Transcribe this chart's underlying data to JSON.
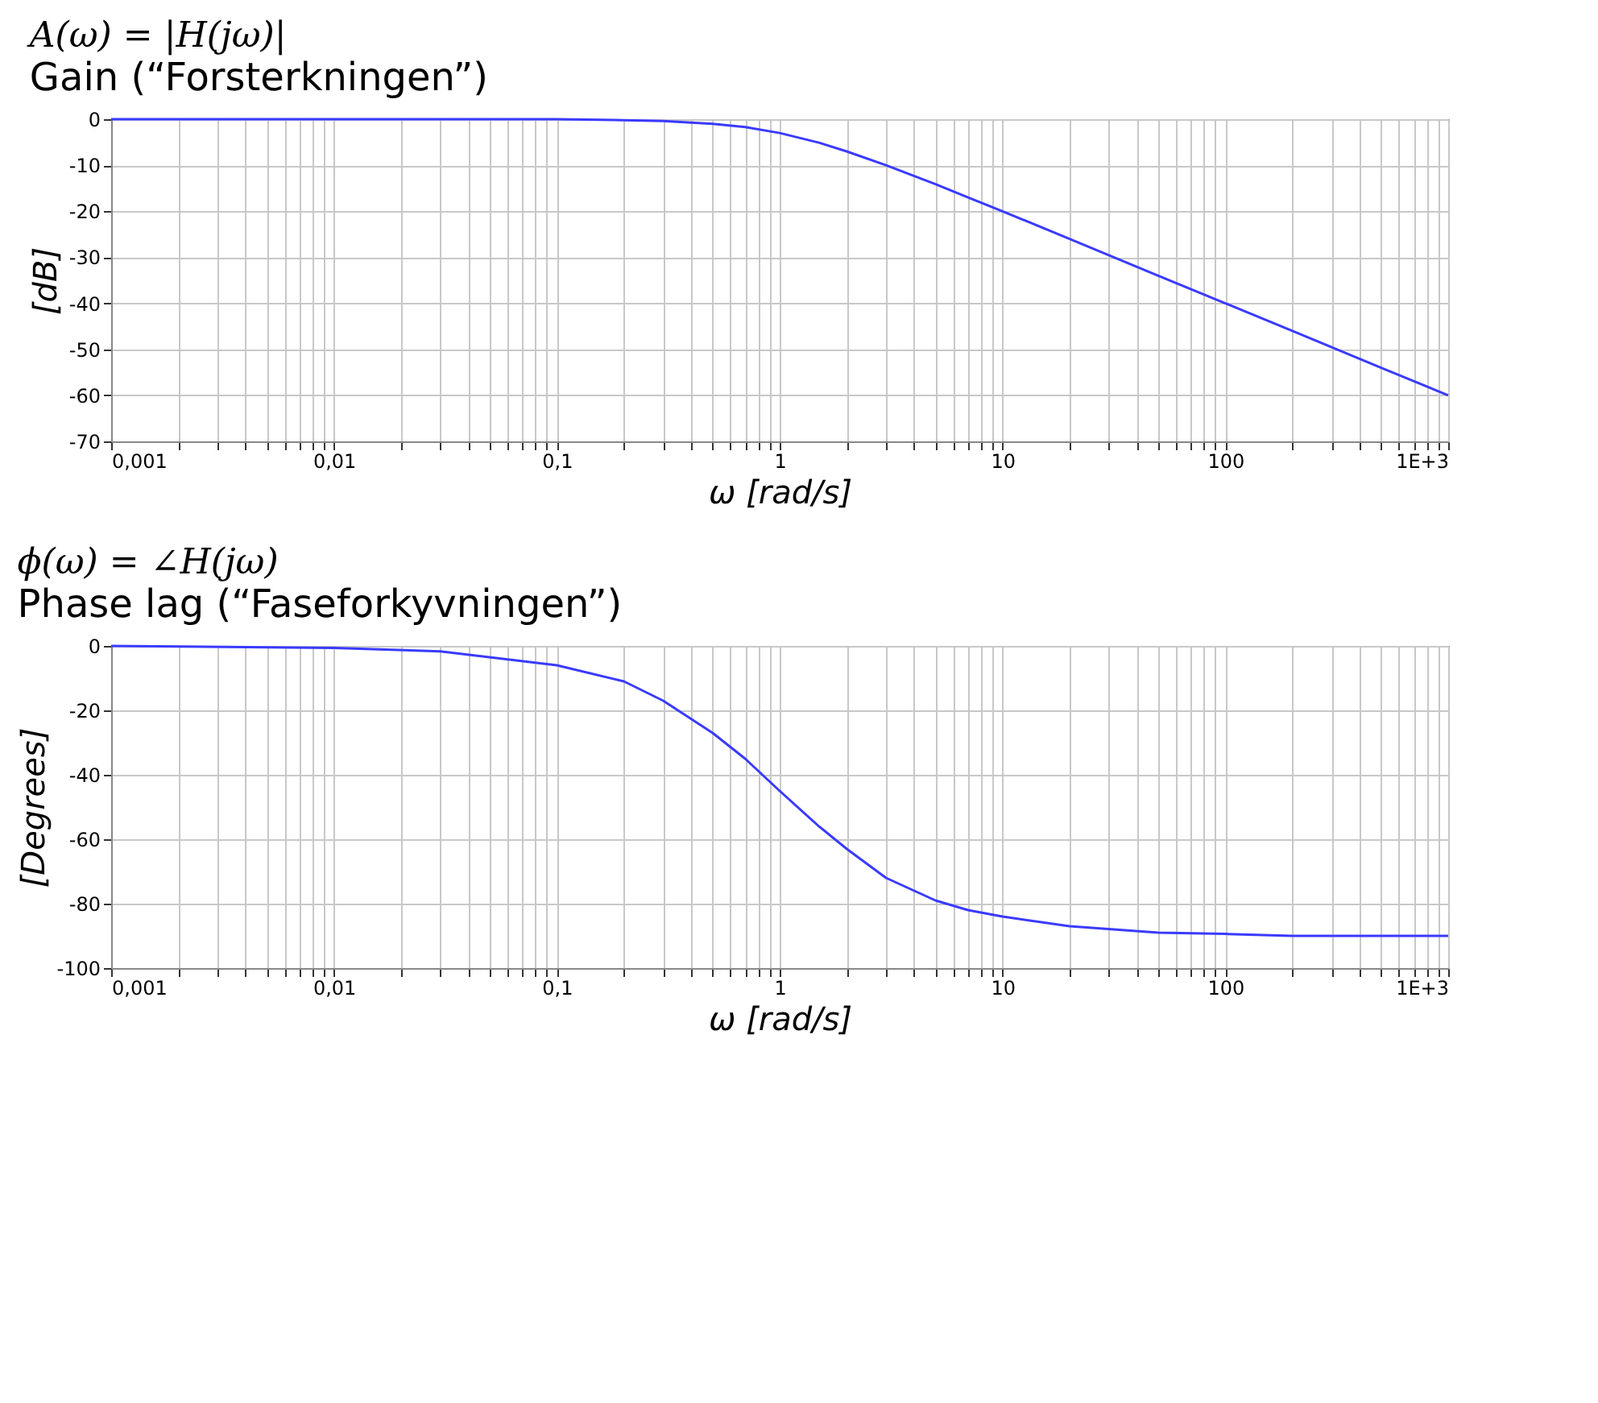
{
  "chart_data": [
    {
      "type": "line",
      "title": "A(ω) = |H(jω)|",
      "subtitle": "Gain (“Forsterkningen”)",
      "xlabel": "ω [rad/s]",
      "ylabel": "[dB]",
      "log": "x",
      "grid": true,
      "x": [
        0.001,
        0.01,
        0.1,
        0.2,
        0.3,
        0.5,
        0.7,
        1,
        1.5,
        2,
        3,
        5,
        7,
        10,
        20,
        50,
        100,
        200,
        500,
        1000
      ],
      "series": [
        {
          "color": "#3a3aff",
          "values": [
            0,
            0,
            0,
            -0.2,
            -0.4,
            -1,
            -1.7,
            -3,
            -5.1,
            -7,
            -10,
            -14.1,
            -17,
            -20,
            -26,
            -34,
            -40,
            -46,
            -54,
            -60
          ]
        }
      ],
      "xlim": [
        0.001,
        1000
      ],
      "ylim": [
        -70,
        0
      ],
      "yticks": [
        -70,
        -60,
        -50,
        -40,
        -30,
        -20,
        -10,
        0
      ],
      "xticks": [
        {
          "value": 0.001,
          "label": "0,001"
        },
        {
          "value": 0.002,
          "label": null
        },
        {
          "value": 0.003,
          "label": null
        },
        {
          "value": 0.004,
          "label": null
        },
        {
          "value": 0.005,
          "label": null
        },
        {
          "value": 0.006,
          "label": null
        },
        {
          "value": 0.007,
          "label": null
        },
        {
          "value": 0.008,
          "label": null
        },
        {
          "value": 0.009,
          "label": null
        },
        {
          "value": 0.01,
          "label": "0,01"
        },
        {
          "value": 0.02,
          "label": null
        },
        {
          "value": 0.03,
          "label": null
        },
        {
          "value": 0.04,
          "label": null
        },
        {
          "value": 0.05,
          "label": null
        },
        {
          "value": 0.06,
          "label": null
        },
        {
          "value": 0.07,
          "label": null
        },
        {
          "value": 0.08,
          "label": null
        },
        {
          "value": 0.09,
          "label": null
        },
        {
          "value": 0.1,
          "label": "0,1"
        },
        {
          "value": 0.2,
          "label": null
        },
        {
          "value": 0.3,
          "label": null
        },
        {
          "value": 0.4,
          "label": null
        },
        {
          "value": 0.5,
          "label": null
        },
        {
          "value": 0.6,
          "label": null
        },
        {
          "value": 0.7,
          "label": null
        },
        {
          "value": 0.8,
          "label": null
        },
        {
          "value": 0.9,
          "label": null
        },
        1,
        {
          "value": 2,
          "label": null
        },
        {
          "value": 3,
          "label": null
        },
        {
          "value": 4,
          "label": null
        },
        {
          "value": 5,
          "label": null
        },
        {
          "value": 6,
          "label": null
        },
        {
          "value": 7,
          "label": null
        },
        {
          "value": 8,
          "label": null
        },
        {
          "value": 9,
          "label": null
        },
        10,
        {
          "value": 20,
          "label": null
        },
        {
          "value": 30,
          "label": null
        },
        {
          "value": 40,
          "label": null
        },
        {
          "value": 50,
          "label": null
        },
        {
          "value": 60,
          "label": null
        },
        {
          "value": 70,
          "label": null
        },
        {
          "value": 80,
          "label": null
        },
        {
          "value": 90,
          "label": null
        },
        100,
        {
          "value": 200,
          "label": null
        },
        {
          "value": 300,
          "label": null
        },
        {
          "value": 400,
          "label": null
        },
        {
          "value": 500,
          "label": null
        },
        {
          "value": 600,
          "label": null
        },
        {
          "value": 700,
          "label": null
        },
        {
          "value": 800,
          "label": null
        },
        {
          "value": 900,
          "label": null
        },
        {
          "value": 1000,
          "label": "1E+3"
        }
      ]
    },
    {
      "type": "line",
      "title": "ϕ(ω) = ∠H(jω)",
      "subtitle": "Phase lag (“Faseforkyvningen”)",
      "xlabel": "ω [rad/s]",
      "ylabel": "[Degrees]",
      "log": "x",
      "grid": true,
      "x": [
        0.001,
        0.01,
        0.03,
        0.1,
        0.2,
        0.3,
        0.5,
        0.7,
        1,
        1.5,
        2,
        3,
        5,
        7,
        10,
        20,
        50,
        100,
        200,
        1000
      ],
      "series": [
        {
          "color": "#3a3aff",
          "values": [
            0,
            -0.6,
            -1.7,
            -6,
            -11,
            -17,
            -27,
            -35,
            -45,
            -56,
            -63,
            -72,
            -79,
            -82,
            -84,
            -87,
            -89,
            -89.4,
            -90,
            -90
          ]
        }
      ],
      "xlim": [
        0.001,
        1000
      ],
      "ylim": [
        -100,
        0
      ],
      "yticks": [
        -100,
        -80,
        -60,
        -40,
        -20,
        0
      ],
      "xticks": [
        {
          "value": 0.001,
          "label": "0,001"
        },
        {
          "value": 0.002,
          "label": null
        },
        {
          "value": 0.003,
          "label": null
        },
        {
          "value": 0.004,
          "label": null
        },
        {
          "value": 0.005,
          "label": null
        },
        {
          "value": 0.006,
          "label": null
        },
        {
          "value": 0.007,
          "label": null
        },
        {
          "value": 0.008,
          "label": null
        },
        {
          "value": 0.009,
          "label": null
        },
        {
          "value": 0.01,
          "label": "0,01"
        },
        {
          "value": 0.02,
          "label": null
        },
        {
          "value": 0.03,
          "label": null
        },
        {
          "value": 0.04,
          "label": null
        },
        {
          "value": 0.05,
          "label": null
        },
        {
          "value": 0.06,
          "label": null
        },
        {
          "value": 0.07,
          "label": null
        },
        {
          "value": 0.08,
          "label": null
        },
        {
          "value": 0.09,
          "label": null
        },
        {
          "value": 0.1,
          "label": "0,1"
        },
        {
          "value": 0.2,
          "label": null
        },
        {
          "value": 0.3,
          "label": null
        },
        {
          "value": 0.4,
          "label": null
        },
        {
          "value": 0.5,
          "label": null
        },
        {
          "value": 0.6,
          "label": null
        },
        {
          "value": 0.7,
          "label": null
        },
        {
          "value": 0.8,
          "label": null
        },
        {
          "value": 0.9,
          "label": null
        },
        1,
        {
          "value": 2,
          "label": null
        },
        {
          "value": 3,
          "label": null
        },
        {
          "value": 4,
          "label": null
        },
        {
          "value": 5,
          "label": null
        },
        {
          "value": 6,
          "label": null
        },
        {
          "value": 7,
          "label": null
        },
        {
          "value": 8,
          "label": null
        },
        {
          "value": 9,
          "label": null
        },
        10,
        {
          "value": 20,
          "label": null
        },
        {
          "value": 30,
          "label": null
        },
        {
          "value": 40,
          "label": null
        },
        {
          "value": 50,
          "label": null
        },
        {
          "value": 60,
          "label": null
        },
        {
          "value": 70,
          "label": null
        },
        {
          "value": 80,
          "label": null
        },
        {
          "value": 90,
          "label": null
        },
        100,
        {
          "value": 200,
          "label": null
        },
        {
          "value": 300,
          "label": null
        },
        {
          "value": 400,
          "label": null
        },
        {
          "value": 500,
          "label": null
        },
        {
          "value": 600,
          "label": null
        },
        {
          "value": 700,
          "label": null
        },
        {
          "value": 800,
          "label": null
        },
        {
          "value": 900,
          "label": null
        },
        {
          "value": 1000,
          "label": "1E+3"
        }
      ]
    }
  ]
}
